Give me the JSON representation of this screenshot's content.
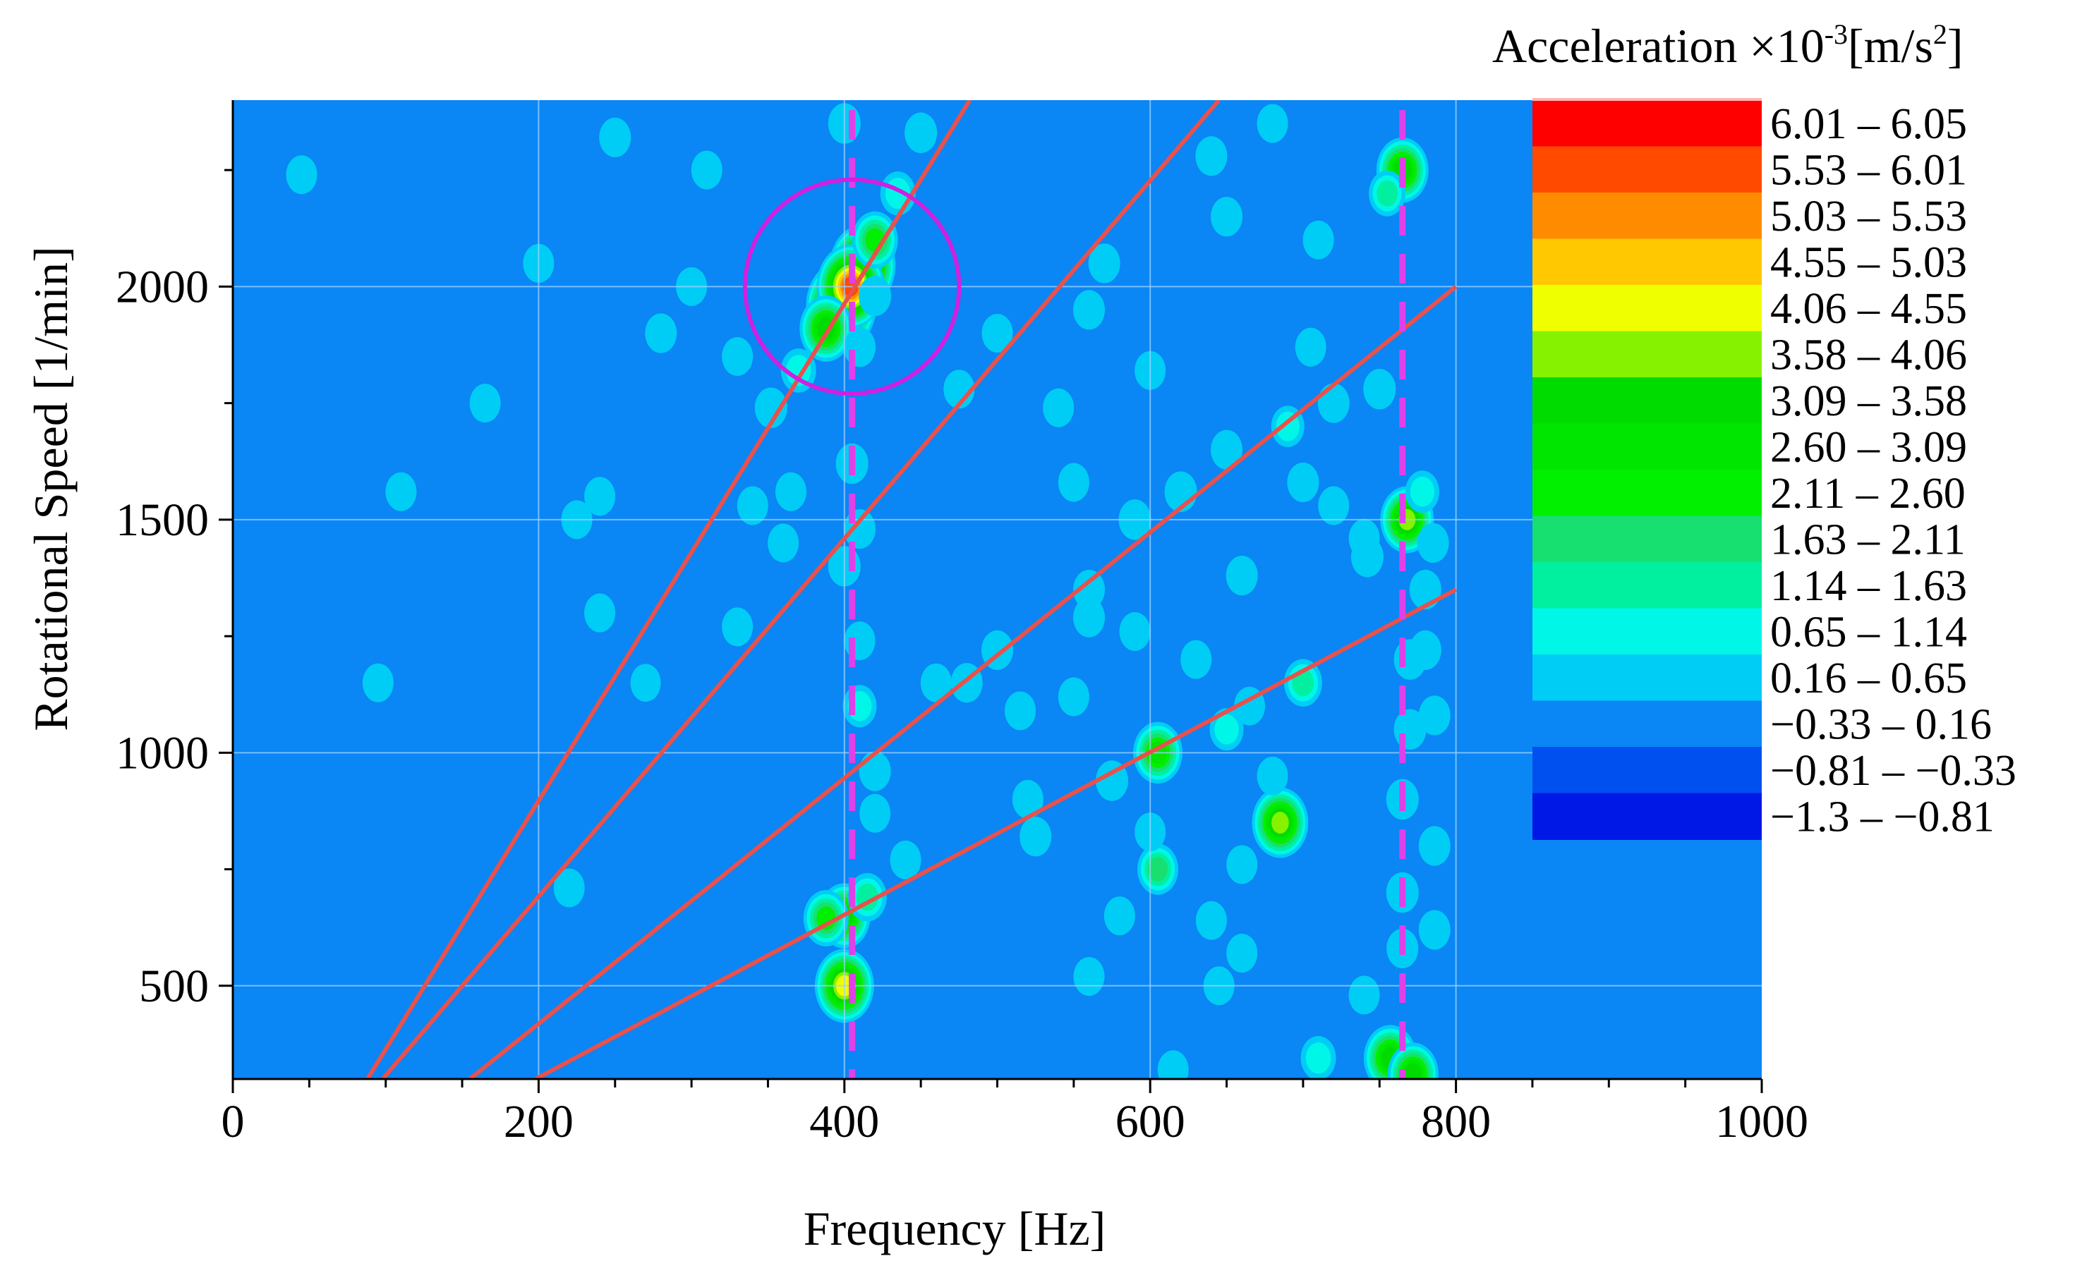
{
  "chart_data": {
    "type": "heatmap",
    "title": "",
    "xlabel": "Frequency [Hz]",
    "ylabel": "Rotational Speed [1/min]",
    "xlim": [
      0,
      1000
    ],
    "ylim": [
      300,
      2400
    ],
    "xticks": [
      0,
      200,
      400,
      600,
      800,
      1000
    ],
    "yticks": [
      500,
      1000,
      1500,
      2000
    ],
    "grid": true,
    "background_color": "#0a86f5",
    "colorbar": {
      "title": "Acceleration ×10⁻³[m/s²]",
      "title_base": "Acceleration ×10",
      "title_exp": "-3",
      "title_unit": "[m/s",
      "title_unit_exp": "2",
      "title_close": "]",
      "placement": "right",
      "bins": [
        {
          "label": "6.01 – 6.05",
          "color": "#ff0000"
        },
        {
          "label": "5.53 – 6.01",
          "color": "#ff4a00"
        },
        {
          "label": "5.03 – 5.53",
          "color": "#ff8c00"
        },
        {
          "label": "4.55 – 5.03",
          "color": "#ffc800"
        },
        {
          "label": "4.06 – 4.55",
          "color": "#f0ff00"
        },
        {
          "label": "3.58 – 4.06",
          "color": "#86f200"
        },
        {
          "label": "3.09 – 3.58",
          "color": "#00dc00"
        },
        {
          "label": "2.60 – 3.09",
          "color": "#00e600"
        },
        {
          "label": "2.11 – 2.60",
          "color": "#00f000"
        },
        {
          "label": "1.63 – 2.11",
          "color": "#18e070"
        },
        {
          "label": "1.14 – 1.63",
          "color": "#00f0a0"
        },
        {
          "label": "0.65 – 1.14",
          "color": "#00f7e8"
        },
        {
          "label": "0.16 – 0.65",
          "color": "#00cdf5"
        },
        {
          "label": "−0.33 – 0.16",
          "color": "#0a86f5"
        },
        {
          "label": "−0.81 – −0.33",
          "color": "#0050f0"
        },
        {
          "label": "−1.3 – −0.81",
          "color": "#0018e6"
        }
      ]
    },
    "order_lines": [
      {
        "color": "#e8514c",
        "points": [
          [
            88,
            300
          ],
          [
            482,
            2400
          ]
        ]
      },
      {
        "color": "#e8514c",
        "points": [
          [
            98,
            300
          ],
          [
            645,
            2400
          ]
        ]
      },
      {
        "color": "#e8514c",
        "points": [
          [
            155,
            300
          ],
          [
            800,
            2000
          ]
        ]
      },
      {
        "color": "#e8514c",
        "points": [
          [
            198,
            300
          ],
          [
            800,
            1350
          ]
        ]
      }
    ],
    "resonance_lines": [
      {
        "color": "#e040e8",
        "x": 405,
        "style": "dashed"
      },
      {
        "color": "#e040e8",
        "x": 765,
        "style": "dashed"
      }
    ],
    "highlight_circle": {
      "color": "#d020e0",
      "x": 405,
      "y": 2000,
      "radius_hz": 70
    },
    "hotspots": [
      {
        "x": 398,
        "y": 1960,
        "level": 6.0
      },
      {
        "x": 412,
        "y": 2045,
        "level": 5.3
      },
      {
        "x": 404,
        "y": 2000,
        "level": 5.6
      },
      {
        "x": 388,
        "y": 1910,
        "level": 3.5
      },
      {
        "x": 420,
        "y": 2100,
        "level": 2.5
      },
      {
        "x": 370,
        "y": 1820,
        "level": 1.0
      },
      {
        "x": 352,
        "y": 1740,
        "level": 0.6
      },
      {
        "x": 435,
        "y": 2200,
        "level": 1.0
      },
      {
        "x": 450,
        "y": 2330,
        "level": 0.6
      },
      {
        "x": 400,
        "y": 2350,
        "level": 0.6
      },
      {
        "x": 640,
        "y": 2280,
        "level": 0.5
      },
      {
        "x": 570,
        "y": 2050,
        "level": 0.5
      },
      {
        "x": 765,
        "y": 2250,
        "level": 3.4
      },
      {
        "x": 755,
        "y": 2200,
        "level": 1.2
      },
      {
        "x": 768,
        "y": 1500,
        "level": 3.6
      },
      {
        "x": 778,
        "y": 1560,
        "level": 0.8
      },
      {
        "x": 750,
        "y": 1780,
        "level": 0.6
      },
      {
        "x": 742,
        "y": 1420,
        "level": 0.6
      },
      {
        "x": 770,
        "y": 1200,
        "level": 0.6
      },
      {
        "x": 770,
        "y": 1050,
        "level": 0.6
      },
      {
        "x": 765,
        "y": 900,
        "level": 0.6
      },
      {
        "x": 765,
        "y": 700,
        "level": 0.6
      },
      {
        "x": 765,
        "y": 580,
        "level": 0.5
      },
      {
        "x": 757,
        "y": 345,
        "level": 3.5
      },
      {
        "x": 772,
        "y": 310,
        "level": 3.2
      },
      {
        "x": 710,
        "y": 345,
        "level": 1.0
      },
      {
        "x": 685,
        "y": 850,
        "level": 4.0
      },
      {
        "x": 605,
        "y": 1000,
        "level": 3.0
      },
      {
        "x": 605,
        "y": 750,
        "level": 1.8
      },
      {
        "x": 650,
        "y": 1050,
        "level": 0.8
      },
      {
        "x": 700,
        "y": 1150,
        "level": 1.4
      },
      {
        "x": 575,
        "y": 940,
        "level": 0.6
      },
      {
        "x": 525,
        "y": 820,
        "level": 0.5
      },
      {
        "x": 400,
        "y": 650,
        "level": 3.4
      },
      {
        "x": 388,
        "y": 645,
        "level": 2.4
      },
      {
        "x": 415,
        "y": 690,
        "level": 1.5
      },
      {
        "x": 400,
        "y": 500,
        "level": 4.4
      },
      {
        "x": 410,
        "y": 1100,
        "level": 0.8
      },
      {
        "x": 400,
        "y": 1400,
        "level": 0.6
      },
      {
        "x": 405,
        "y": 1620,
        "level": 0.6
      },
      {
        "x": 410,
        "y": 1480,
        "level": 0.5
      },
      {
        "x": 420,
        "y": 960,
        "level": 0.5
      },
      {
        "x": 590,
        "y": 1500,
        "level": 0.6
      },
      {
        "x": 620,
        "y": 1560,
        "level": 0.6
      },
      {
        "x": 650,
        "y": 1650,
        "level": 0.5
      },
      {
        "x": 690,
        "y": 1700,
        "level": 0.7
      },
      {
        "x": 720,
        "y": 1750,
        "level": 0.5
      },
      {
        "x": 660,
        "y": 1380,
        "level": 0.5
      },
      {
        "x": 700,
        "y": 1580,
        "level": 0.5
      },
      {
        "x": 560,
        "y": 1350,
        "level": 0.5
      },
      {
        "x": 500,
        "y": 1220,
        "level": 0.5
      },
      {
        "x": 480,
        "y": 1150,
        "level": 0.5
      },
      {
        "x": 420,
        "y": 1980,
        "level": 0.6
      },
      {
        "x": 560,
        "y": 1290,
        "level": 0.5
      },
      {
        "x": 460,
        "y": 1150,
        "level": 0.4
      },
      {
        "x": 515,
        "y": 1090,
        "level": 0.4
      },
      {
        "x": 520,
        "y": 900,
        "level": 0.4
      },
      {
        "x": 550,
        "y": 1580,
        "level": 0.4
      },
      {
        "x": 475,
        "y": 1780,
        "level": 0.4
      },
      {
        "x": 500,
        "y": 1900,
        "level": 0.4
      },
      {
        "x": 560,
        "y": 1950,
        "level": 0.5
      },
      {
        "x": 540,
        "y": 1740,
        "level": 0.4
      },
      {
        "x": 280,
        "y": 1900,
        "level": 0.5
      },
      {
        "x": 300,
        "y": 2000,
        "level": 0.4
      },
      {
        "x": 225,
        "y": 1500,
        "level": 0.4
      },
      {
        "x": 240,
        "y": 1300,
        "level": 0.4
      },
      {
        "x": 270,
        "y": 1150,
        "level": 0.3
      },
      {
        "x": 330,
        "y": 1850,
        "level": 0.4
      },
      {
        "x": 365,
        "y": 1560,
        "level": 0.4
      },
      {
        "x": 240,
        "y": 1550,
        "level": 0.4
      },
      {
        "x": 410,
        "y": 1240,
        "level": 0.4
      },
      {
        "x": 360,
        "y": 1450,
        "level": 0.4
      },
      {
        "x": 330,
        "y": 1270,
        "level": 0.4
      },
      {
        "x": 340,
        "y": 1530,
        "level": 0.4
      },
      {
        "x": 640,
        "y": 640,
        "level": 0.4
      },
      {
        "x": 645,
        "y": 500,
        "level": 0.4
      },
      {
        "x": 660,
        "y": 760,
        "level": 0.4
      },
      {
        "x": 660,
        "y": 570,
        "level": 0.4
      },
      {
        "x": 580,
        "y": 650,
        "level": 0.4
      },
      {
        "x": 560,
        "y": 520,
        "level": 0.4
      },
      {
        "x": 650,
        "y": 2150,
        "level": 0.5
      },
      {
        "x": 680,
        "y": 2350,
        "level": 0.4
      },
      {
        "x": 710,
        "y": 2100,
        "level": 0.4
      },
      {
        "x": 785,
        "y": 1450,
        "level": 0.5
      },
      {
        "x": 780,
        "y": 1350,
        "level": 0.5
      },
      {
        "x": 780,
        "y": 1220,
        "level": 0.5
      },
      {
        "x": 786,
        "y": 1080,
        "level": 0.5
      },
      {
        "x": 786,
        "y": 800,
        "level": 0.5
      },
      {
        "x": 786,
        "y": 620,
        "level": 0.5
      },
      {
        "x": 740,
        "y": 480,
        "level": 0.4
      },
      {
        "x": 740,
        "y": 1460,
        "level": 0.4
      },
      {
        "x": 600,
        "y": 830,
        "level": 0.4
      },
      {
        "x": 615,
        "y": 320,
        "level": 0.4
      },
      {
        "x": 705,
        "y": 1870,
        "level": 0.4
      },
      {
        "x": 720,
        "y": 1530,
        "level": 0.4
      },
      {
        "x": 665,
        "y": 1100,
        "level": 0.4
      },
      {
        "x": 630,
        "y": 1200,
        "level": 0.4
      },
      {
        "x": 600,
        "y": 1820,
        "level": 0.4
      },
      {
        "x": 250,
        "y": 2320,
        "level": 0.5
      },
      {
        "x": 310,
        "y": 2250,
        "level": 0.4
      },
      {
        "x": 420,
        "y": 870,
        "level": 0.4
      },
      {
        "x": 680,
        "y": 950,
        "level": 0.4
      },
      {
        "x": 440,
        "y": 770,
        "level": 0.4
      },
      {
        "x": 550,
        "y": 1120,
        "level": 0.4
      },
      {
        "x": 590,
        "y": 1260,
        "level": 0.4
      },
      {
        "x": 45,
        "y": 2240,
        "level": 0.4
      },
      {
        "x": 95,
        "y": 1150,
        "level": 0.4
      },
      {
        "x": 110,
        "y": 1560,
        "level": 0.4
      },
      {
        "x": 220,
        "y": 710,
        "level": 0.4
      },
      {
        "x": 200,
        "y": 2050,
        "level": 0.4
      },
      {
        "x": 165,
        "y": 1750,
        "level": 0.4
      },
      {
        "x": 410,
        "y": 1870,
        "level": 0.5
      }
    ]
  }
}
